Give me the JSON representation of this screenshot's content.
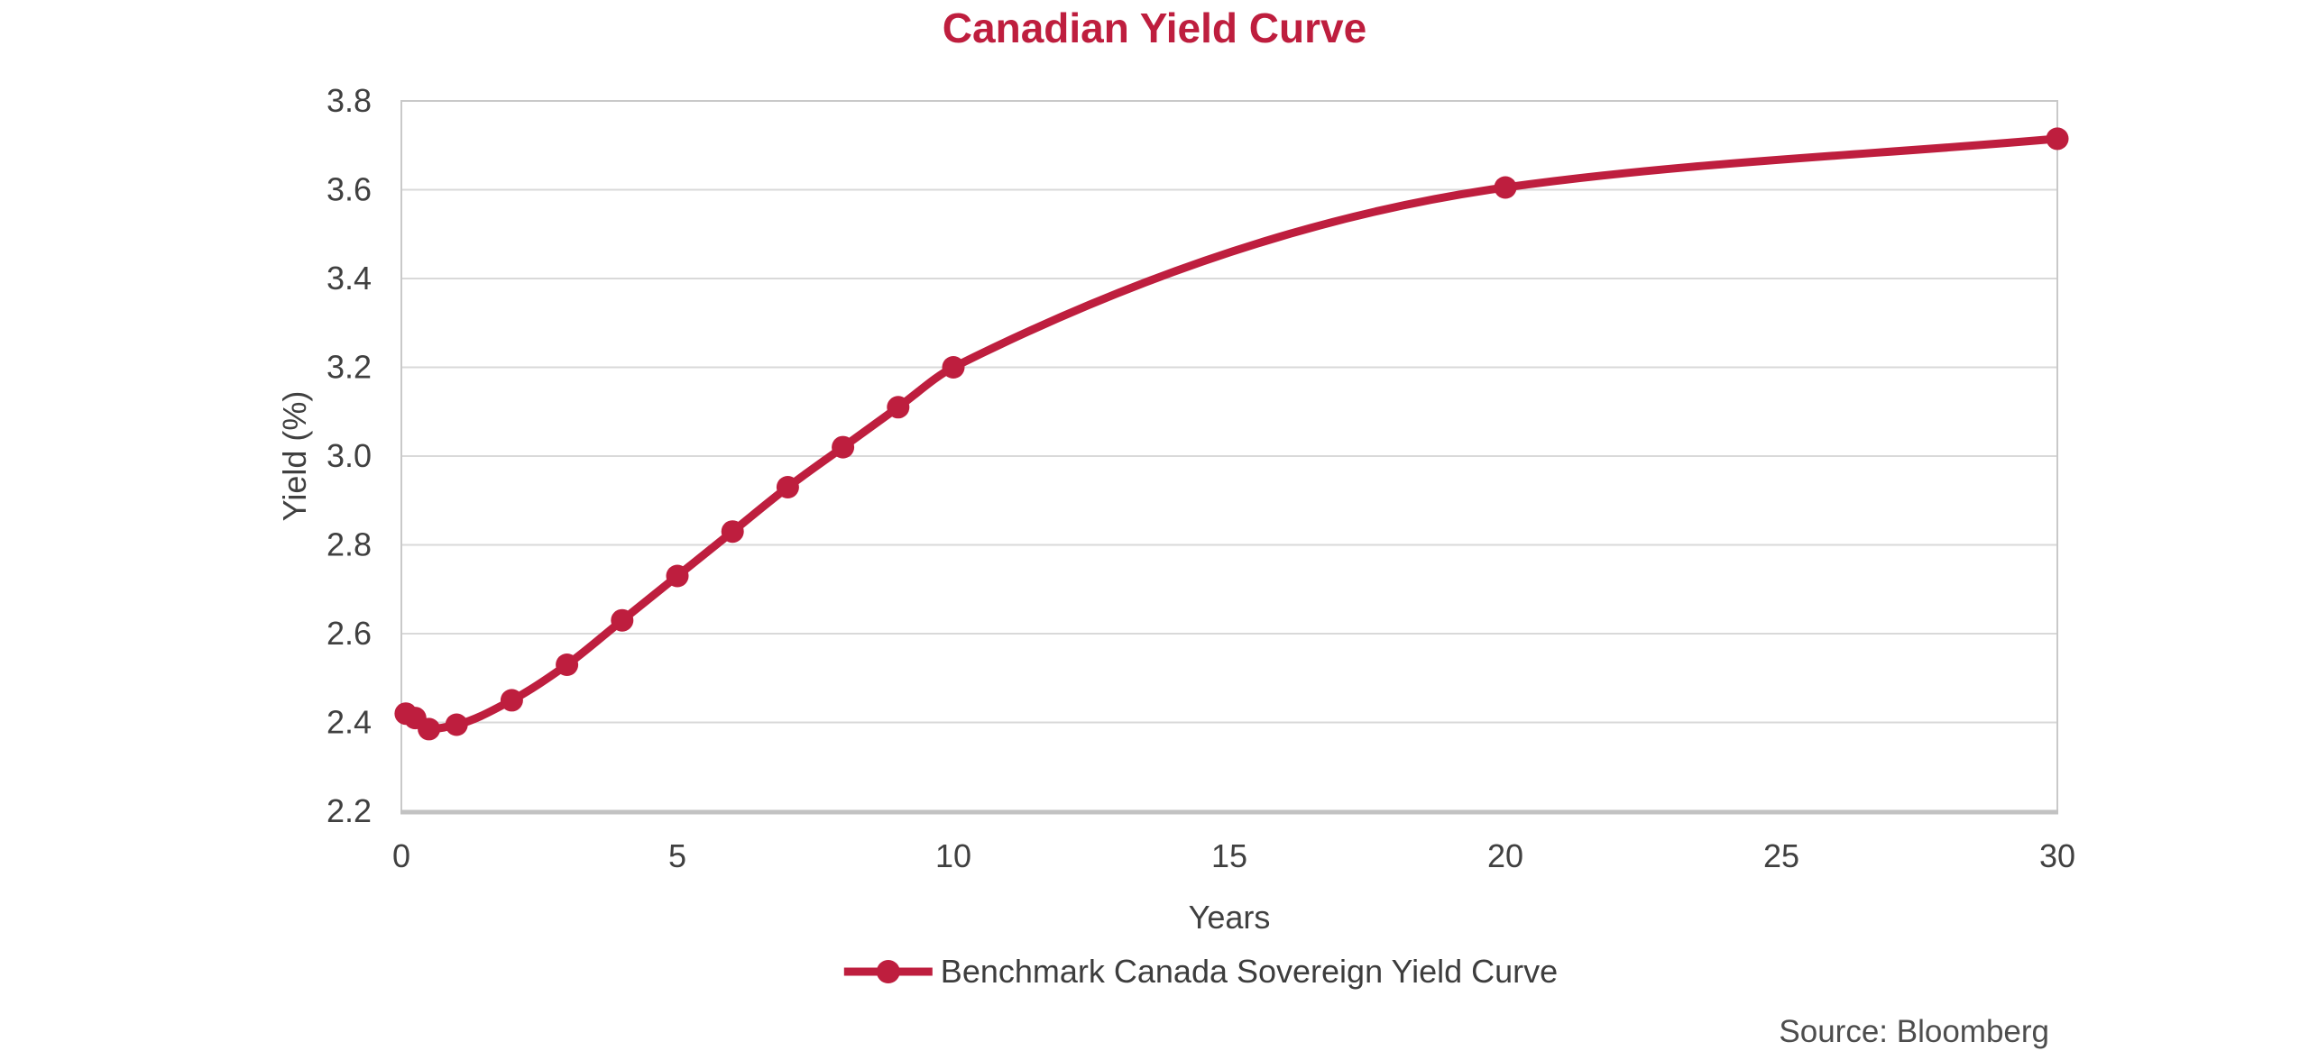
{
  "title": "Canadian Yield Curve",
  "source_note": "Source: Bloomberg",
  "colors": {
    "accent": "#BE1E3E",
    "gridline": "#D9D9D9",
    "plot_border": "#C9C9C9",
    "axis_line": "#C2C2C2",
    "text": "#404040"
  },
  "legend": {
    "label": "Benchmark Canada Sovereign Yield Curve"
  },
  "chart_data": {
    "type": "line",
    "title": "Canadian Yield Curve",
    "xlabel": "Years",
    "ylabel": "Yield (%)",
    "x": [
      0.08,
      0.25,
      0.5,
      1,
      2,
      3,
      4,
      5,
      6,
      7,
      8,
      9,
      10,
      20,
      30
    ],
    "series": [
      {
        "name": "Benchmark Canada Sovereign Yield Curve",
        "color": "#BE1E3E",
        "marker": "circle",
        "values": [
          2.42,
          2.41,
          2.385,
          2.395,
          2.45,
          2.53,
          2.63,
          2.73,
          2.83,
          2.93,
          3.02,
          3.11,
          3.2,
          3.605,
          3.715
        ]
      }
    ],
    "xlim": [
      0,
      30
    ],
    "ylim": [
      2.2,
      3.8
    ],
    "xticks": [
      0,
      5,
      10,
      15,
      20,
      25,
      30
    ],
    "xtick_labels": [
      "0",
      "5",
      "10",
      "15",
      "20",
      "25",
      "30"
    ],
    "yticks": [
      2.2,
      2.4,
      2.6,
      2.8,
      3.0,
      3.2,
      3.4,
      3.6,
      3.8
    ],
    "ytick_labels": [
      "2.2",
      "2.4",
      "2.6",
      "2.8",
      "3.0",
      "3.2",
      "3.4",
      "3.6",
      "3.8"
    ],
    "grid": "horizontal-only",
    "smooth": true,
    "legend_position": "bottom",
    "source": "Source: Bloomberg"
  }
}
